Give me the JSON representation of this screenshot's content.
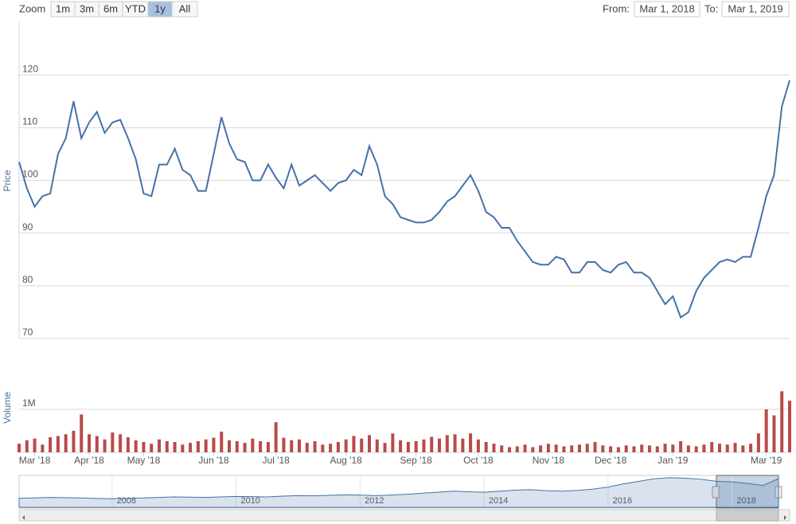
{
  "range_selector": {
    "label": "Zoom",
    "buttons": [
      "1m",
      "3m",
      "6m",
      "YTD",
      "1y",
      "All"
    ],
    "selected": 4,
    "from_label": "From:",
    "from": "Mar 1, 2018",
    "to_label": "To:",
    "to": "Mar 1, 2019"
  },
  "chart_data": [
    {
      "type": "line",
      "y_label": "Price",
      "color": "#4572a7",
      "ylim": [
        70,
        130
      ],
      "yticks": [
        70,
        80,
        90,
        100,
        110,
        120
      ],
      "grid": true,
      "values": [
        103.5,
        98.5,
        95,
        97,
        97.5,
        105,
        108,
        115,
        108,
        111,
        113,
        109,
        111,
        111.5,
        108,
        104,
        97.5,
        97,
        103,
        103,
        106,
        102,
        101,
        98,
        98,
        105,
        112,
        107,
        104,
        103.5,
        100,
        100,
        103,
        100.5,
        98.5,
        103,
        99,
        100,
        101,
        99.5,
        98,
        99.5,
        100,
        102,
        101,
        106.5,
        103,
        97,
        95.5,
        93,
        92.5,
        92,
        92,
        92.5,
        94,
        96,
        97,
        99,
        101,
        98,
        94,
        93,
        91,
        91,
        88.5,
        86.5,
        84.5,
        84,
        84,
        85.5,
        85,
        82.5,
        82.5,
        84.5,
        84.5,
        83,
        82.5,
        84,
        84.5,
        82.5,
        82.5,
        81.5,
        79,
        76.5,
        78,
        74,
        75,
        79,
        81.5,
        83,
        84.5,
        85,
        84.5,
        85.5,
        85.5,
        91,
        97,
        101,
        114,
        119
      ]
    },
    {
      "type": "bar",
      "y_label": "Volume",
      "color": "#b94a48",
      "ylim": [
        0,
        2000000
      ],
      "yticks": [
        {
          "value": 1000000,
          "label": "1M"
        }
      ],
      "grid": true,
      "categories": [
        null,
        null,
        "Mar '18",
        null,
        null,
        null,
        null,
        null,
        null,
        "Apr '18",
        null,
        null,
        null,
        null,
        null,
        null,
        "May '18",
        null,
        null,
        null,
        null,
        null,
        null,
        null,
        null,
        "Jun '18",
        null,
        null,
        null,
        null,
        null,
        null,
        null,
        "Jul '18",
        null,
        null,
        null,
        null,
        null,
        null,
        null,
        null,
        "Aug '18",
        null,
        null,
        null,
        null,
        null,
        null,
        null,
        null,
        "Sep '18",
        null,
        null,
        null,
        null,
        null,
        null,
        null,
        "Oct '18",
        null,
        null,
        null,
        null,
        null,
        null,
        null,
        null,
        "Nov '18",
        null,
        null,
        null,
        null,
        null,
        null,
        null,
        "Dec '18",
        null,
        null,
        null,
        null,
        null,
        null,
        null,
        "Jan '19",
        null,
        null,
        null,
        null,
        null,
        null,
        null,
        null,
        null,
        null,
        null,
        "Mar '19",
        null,
        null,
        null
      ],
      "values": [
        200000,
        280000,
        320000,
        180000,
        350000,
        380000,
        420000,
        500000,
        880000,
        420000,
        380000,
        300000,
        460000,
        420000,
        350000,
        280000,
        240000,
        200000,
        300000,
        260000,
        240000,
        180000,
        220000,
        260000,
        300000,
        340000,
        480000,
        280000,
        260000,
        220000,
        320000,
        260000,
        240000,
        700000,
        340000,
        280000,
        300000,
        220000,
        260000,
        180000,
        200000,
        240000,
        300000,
        380000,
        320000,
        400000,
        300000,
        220000,
        440000,
        280000,
        240000,
        260000,
        300000,
        360000,
        320000,
        400000,
        420000,
        320000,
        440000,
        300000,
        240000,
        200000,
        160000,
        120000,
        140000,
        180000,
        120000,
        160000,
        200000,
        180000,
        140000,
        160000,
        180000,
        200000,
        240000,
        160000,
        140000,
        120000,
        160000,
        140000,
        180000,
        160000,
        140000,
        200000,
        180000,
        260000,
        160000,
        140000,
        180000,
        240000,
        200000,
        180000,
        220000,
        160000,
        200000,
        440000,
        1000000,
        860000,
        1420000,
        1200000
      ]
    },
    {
      "type": "area",
      "color": "#4572a7",
      "categories": [
        null,
        null,
        null,
        null,
        null,
        null,
        "2008",
        null,
        null,
        null,
        null,
        null,
        null,
        null,
        "2010",
        null,
        null,
        null,
        null,
        null,
        null,
        null,
        "2012",
        null,
        null,
        null,
        null,
        null,
        null,
        null,
        "2014",
        null,
        null,
        null,
        null,
        null,
        null,
        null,
        "2016",
        null,
        null,
        null,
        null,
        null,
        null,
        null,
        "2018",
        null,
        null,
        null
      ],
      "values": [
        35,
        36,
        38,
        37,
        36,
        34,
        33,
        34,
        36,
        38,
        40,
        39,
        38,
        40,
        42,
        41,
        40,
        43,
        45,
        44,
        46,
        48,
        47,
        45,
        47,
        50,
        54,
        58,
        62,
        60,
        58,
        62,
        66,
        68,
        64,
        62,
        65,
        70,
        78,
        90,
        100,
        110,
        114,
        112,
        108,
        100,
        98,
        92,
        84,
        110
      ]
    }
  ]
}
